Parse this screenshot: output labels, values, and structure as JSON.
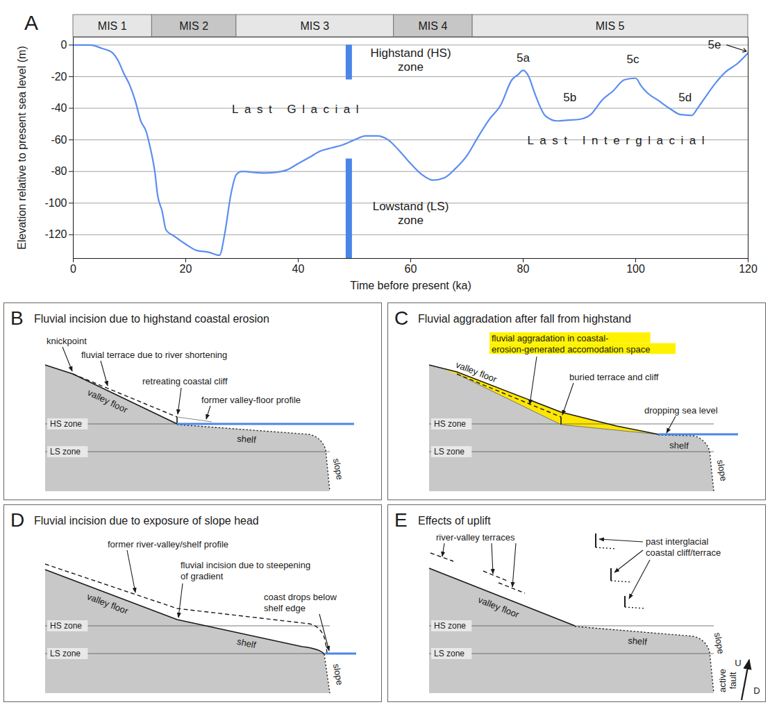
{
  "chart_data": {
    "type": "line",
    "letter": "A",
    "xlabel": "Time before present (ka)",
    "ylabel": "Elevation relative to present sea level (m)",
    "x": [
      0,
      3,
      5,
      7,
      8,
      9,
      10,
      11,
      12,
      13,
      13.5,
      14,
      14.5,
      15,
      15.8,
      16.5,
      18,
      20,
      22,
      24,
      26,
      27,
      28,
      29,
      30,
      34,
      36,
      38,
      40,
      42,
      44,
      46,
      48,
      50,
      52,
      54,
      56,
      58,
      60,
      62,
      64,
      66,
      68,
      70,
      72,
      74,
      76,
      78,
      79,
      80,
      81,
      82,
      84,
      86,
      88,
      90,
      92,
      94,
      96,
      98,
      100,
      101,
      102,
      104,
      106,
      108,
      110,
      111,
      112,
      114,
      116,
      118,
      120
    ],
    "values": [
      0,
      0,
      -2,
      -5,
      -10,
      -18,
      -25,
      -35,
      -48,
      -55,
      -62,
      -70,
      -80,
      -95,
      -105,
      -117,
      -121,
      -126,
      -130,
      -131,
      -133,
      -118,
      -95,
      -82,
      -80,
      -81,
      -80.5,
      -79,
      -75,
      -71,
      -67,
      -65,
      -63,
      -60,
      -57.5,
      -57.5,
      -60,
      -67,
      -75,
      -82,
      -85.5,
      -84,
      -78,
      -70,
      -58,
      -47,
      -38,
      -22,
      -19,
      -16,
      -20,
      -30,
      -45,
      -48,
      -47.5,
      -47,
      -44,
      -35,
      -29,
      -22,
      -21,
      -26,
      -30,
      -35,
      -40,
      -44,
      -44.5,
      -40,
      -35,
      -25,
      -17,
      -12,
      -5
    ],
    "color": "#5b8def",
    "xlim": [
      0,
      120
    ],
    "ylim": [
      -135,
      5
    ],
    "xticks": [
      0,
      20,
      40,
      60,
      80,
      100,
      120
    ],
    "yticks": [
      -120,
      -100,
      -80,
      -60,
      -40,
      -20,
      0
    ],
    "grid": true,
    "stages": [
      {
        "label": "MIS 1",
        "from": 0,
        "to": 14
      },
      {
        "label": "MIS 2",
        "from": 14,
        "to": 29
      },
      {
        "label": "MIS 3",
        "from": 29,
        "to": 57
      },
      {
        "label": "MIS 4",
        "from": 57,
        "to": 71
      },
      {
        "label": "MIS 5",
        "from": 71,
        "to": 120
      }
    ],
    "zones": [
      {
        "label": "Highstand (HS)\nzone",
        "x": 49,
        "from": 0,
        "to": -22,
        "color": "#4a86e8"
      },
      {
        "label": "Lowstand (LS)\nzone",
        "x": 49,
        "from": -72,
        "to": -135,
        "color": "#4a86e8"
      }
    ],
    "annotations": [
      "5a",
      "5b",
      "5c",
      "5d",
      "5e",
      "Last Glacial",
      "Last Interglacial"
    ]
  },
  "diagrams": [
    {
      "letter": "B",
      "title": "Fluvial incision due to highstand coastal erosion",
      "annotations": [
        "knickpoint",
        "fluvial terrace due to river shortening",
        "retreating coastal cliff",
        "former valley-floor profile"
      ],
      "terrain": [
        "valley floor",
        "shelf",
        "slope"
      ],
      "zones": [
        "HS zone",
        "LS zone"
      ]
    },
    {
      "letter": "C",
      "title": "Fluvial aggradation after fall from highstand",
      "highlight": "fluvial aggradation in coastal-erosion-generated accomodation space",
      "annotations": [
        "buried terrace and cliff",
        "dropping sea level"
      ],
      "terrain": [
        "valley floor",
        "shelf",
        "slope"
      ],
      "zones": [
        "HS zone",
        "LS zone"
      ]
    },
    {
      "letter": "D",
      "title": "Fluvial incision due to exposure of slope head",
      "annotations": [
        "former river-valley/shelf profile",
        "fluvial incision due to steepening of gradient",
        "coast drops below shelf edge"
      ],
      "terrain": [
        "valley floor",
        "shelf",
        "slope"
      ],
      "zones": [
        "HS zone",
        "LS zone"
      ]
    },
    {
      "letter": "E",
      "title": "Effects of uplift",
      "annotations": [
        "river-valley terraces",
        "past interglacial coastal cliff/terrace",
        "active fault",
        "U",
        "D"
      ],
      "terrain": [
        "valley floor",
        "shelf",
        "slope"
      ],
      "zones": [
        "HS zone",
        "LS zone"
      ]
    }
  ]
}
